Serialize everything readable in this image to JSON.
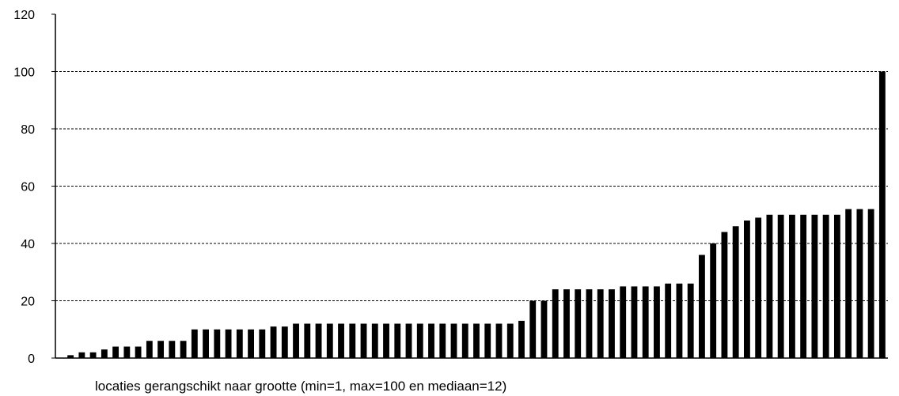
{
  "chart_data": {
    "type": "bar",
    "title": "",
    "xlabel": "locaties gerangschikt naar grootte (min=1, max=100 en mediaan=12)",
    "ylabel": "",
    "ylim": [
      0,
      120
    ],
    "yticks": [
      "0",
      "20",
      "40",
      "60",
      "80",
      "100",
      "120"
    ],
    "grid": "horizontal dashed",
    "legend": "none",
    "bar_color": "#000000",
    "values": [
      1,
      2,
      2,
      3,
      4,
      4,
      4,
      6,
      6,
      6,
      6,
      10,
      10,
      10,
      10,
      10,
      10,
      10,
      11,
      11,
      12,
      12,
      12,
      12,
      12,
      12,
      12,
      12,
      12,
      12,
      12,
      12,
      12,
      12,
      12,
      12,
      12,
      12,
      12,
      12,
      13,
      20,
      20,
      24,
      24,
      24,
      24,
      24,
      24,
      25,
      25,
      25,
      25,
      26,
      26,
      26,
      36,
      40,
      44,
      46,
      48,
      49,
      50,
      50,
      50,
      50,
      50,
      50,
      50,
      52,
      52,
      52,
      100
    ]
  }
}
